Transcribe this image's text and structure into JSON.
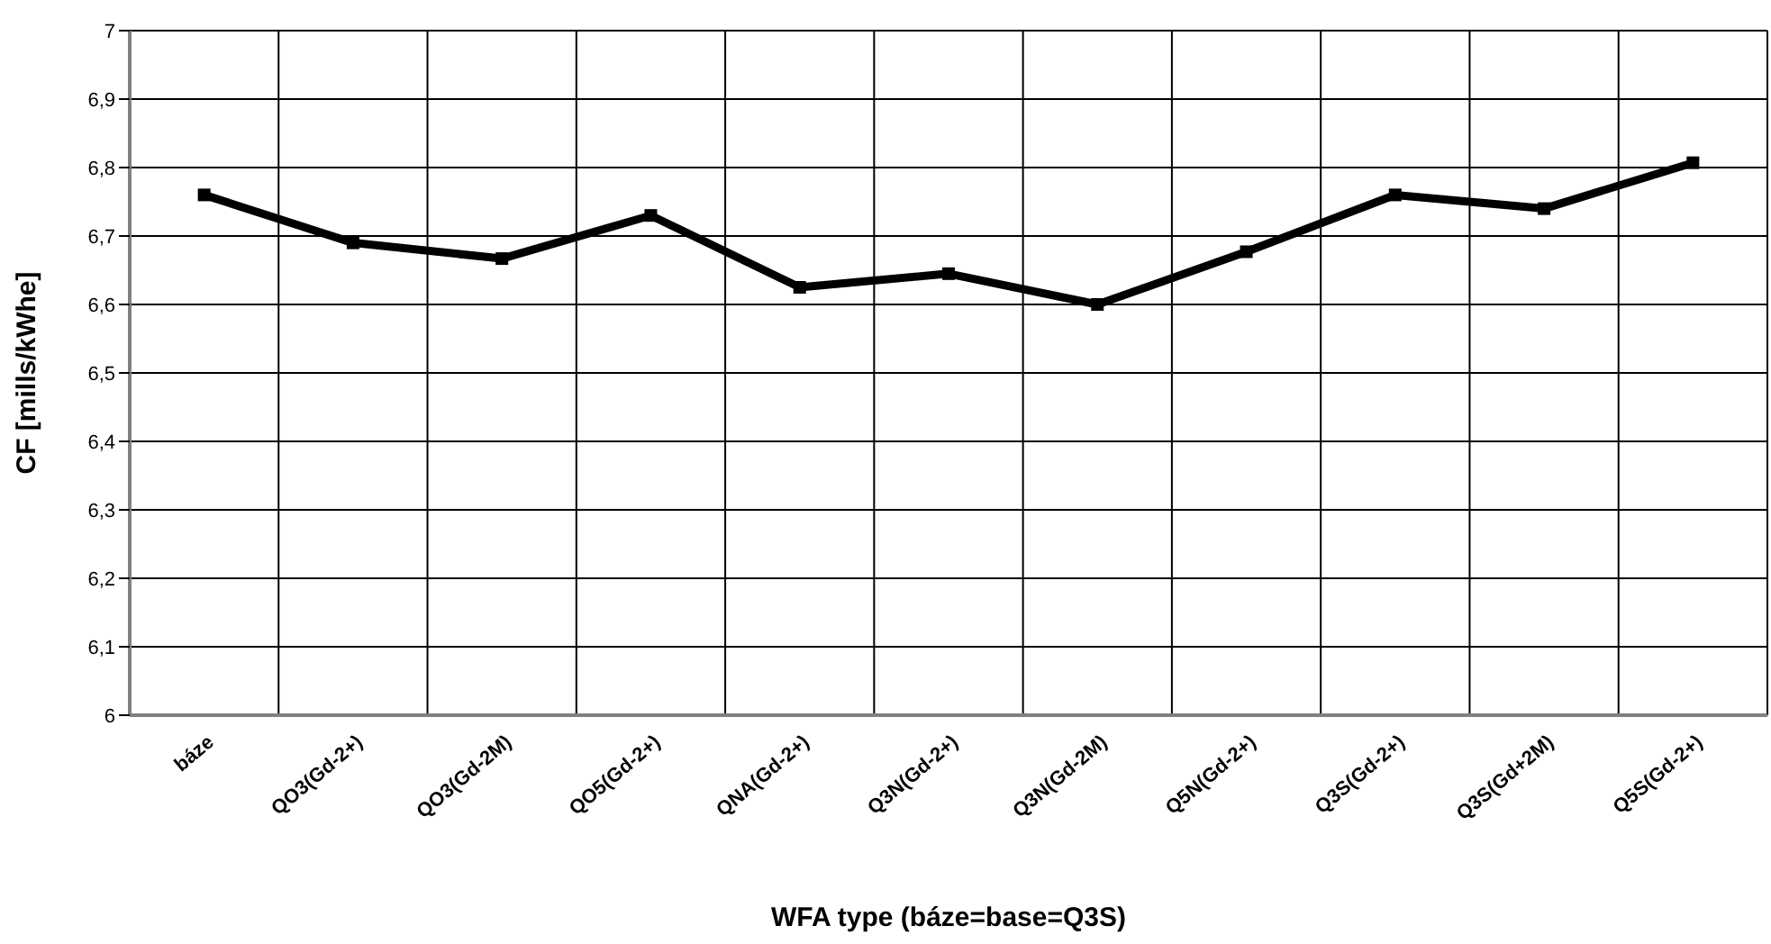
{
  "chart_data": {
    "type": "line",
    "xlabel": "WFA type (báze=base=Q3S)",
    "ylabel": "CF [mills/kWhe]",
    "categories": [
      "báze",
      "QO3(Gd-2+)",
      "QO3(Gd-2M)",
      "QO5(Gd-2+)",
      "QNA(Gd-2+)",
      "Q3N(Gd-2+)",
      "Q3N(Gd-2M)",
      "Q5N(Gd-2+)",
      "Q3S(Gd-2+)",
      "Q3S(Gd+2M)",
      "Q5S(Gd-2+)"
    ],
    "series": [
      {
        "color": "#000000",
        "values": [
          6.76,
          6.69,
          6.667,
          6.73,
          6.625,
          6.645,
          6.6,
          6.677,
          6.76,
          6.74,
          6.807
        ]
      }
    ],
    "ylim": [
      6,
      7
    ],
    "yticks": [
      6,
      {
        "value": 6.1,
        "label": "6,1"
      },
      {
        "value": 6.2,
        "label": "6,2"
      },
      {
        "value": 6.3,
        "label": "6,3"
      },
      {
        "value": 6.4,
        "label": "6,4"
      },
      {
        "value": 6.5,
        "label": "6,5"
      },
      {
        "value": 6.6,
        "label": "6,6"
      },
      {
        "value": 6.7,
        "label": "6,7"
      },
      {
        "value": 6.8,
        "label": "6,8"
      },
      {
        "value": 6.9,
        "label": "6,9"
      },
      7
    ],
    "grid": true,
    "legend": false,
    "marker": "square",
    "line_style": "solid"
  }
}
